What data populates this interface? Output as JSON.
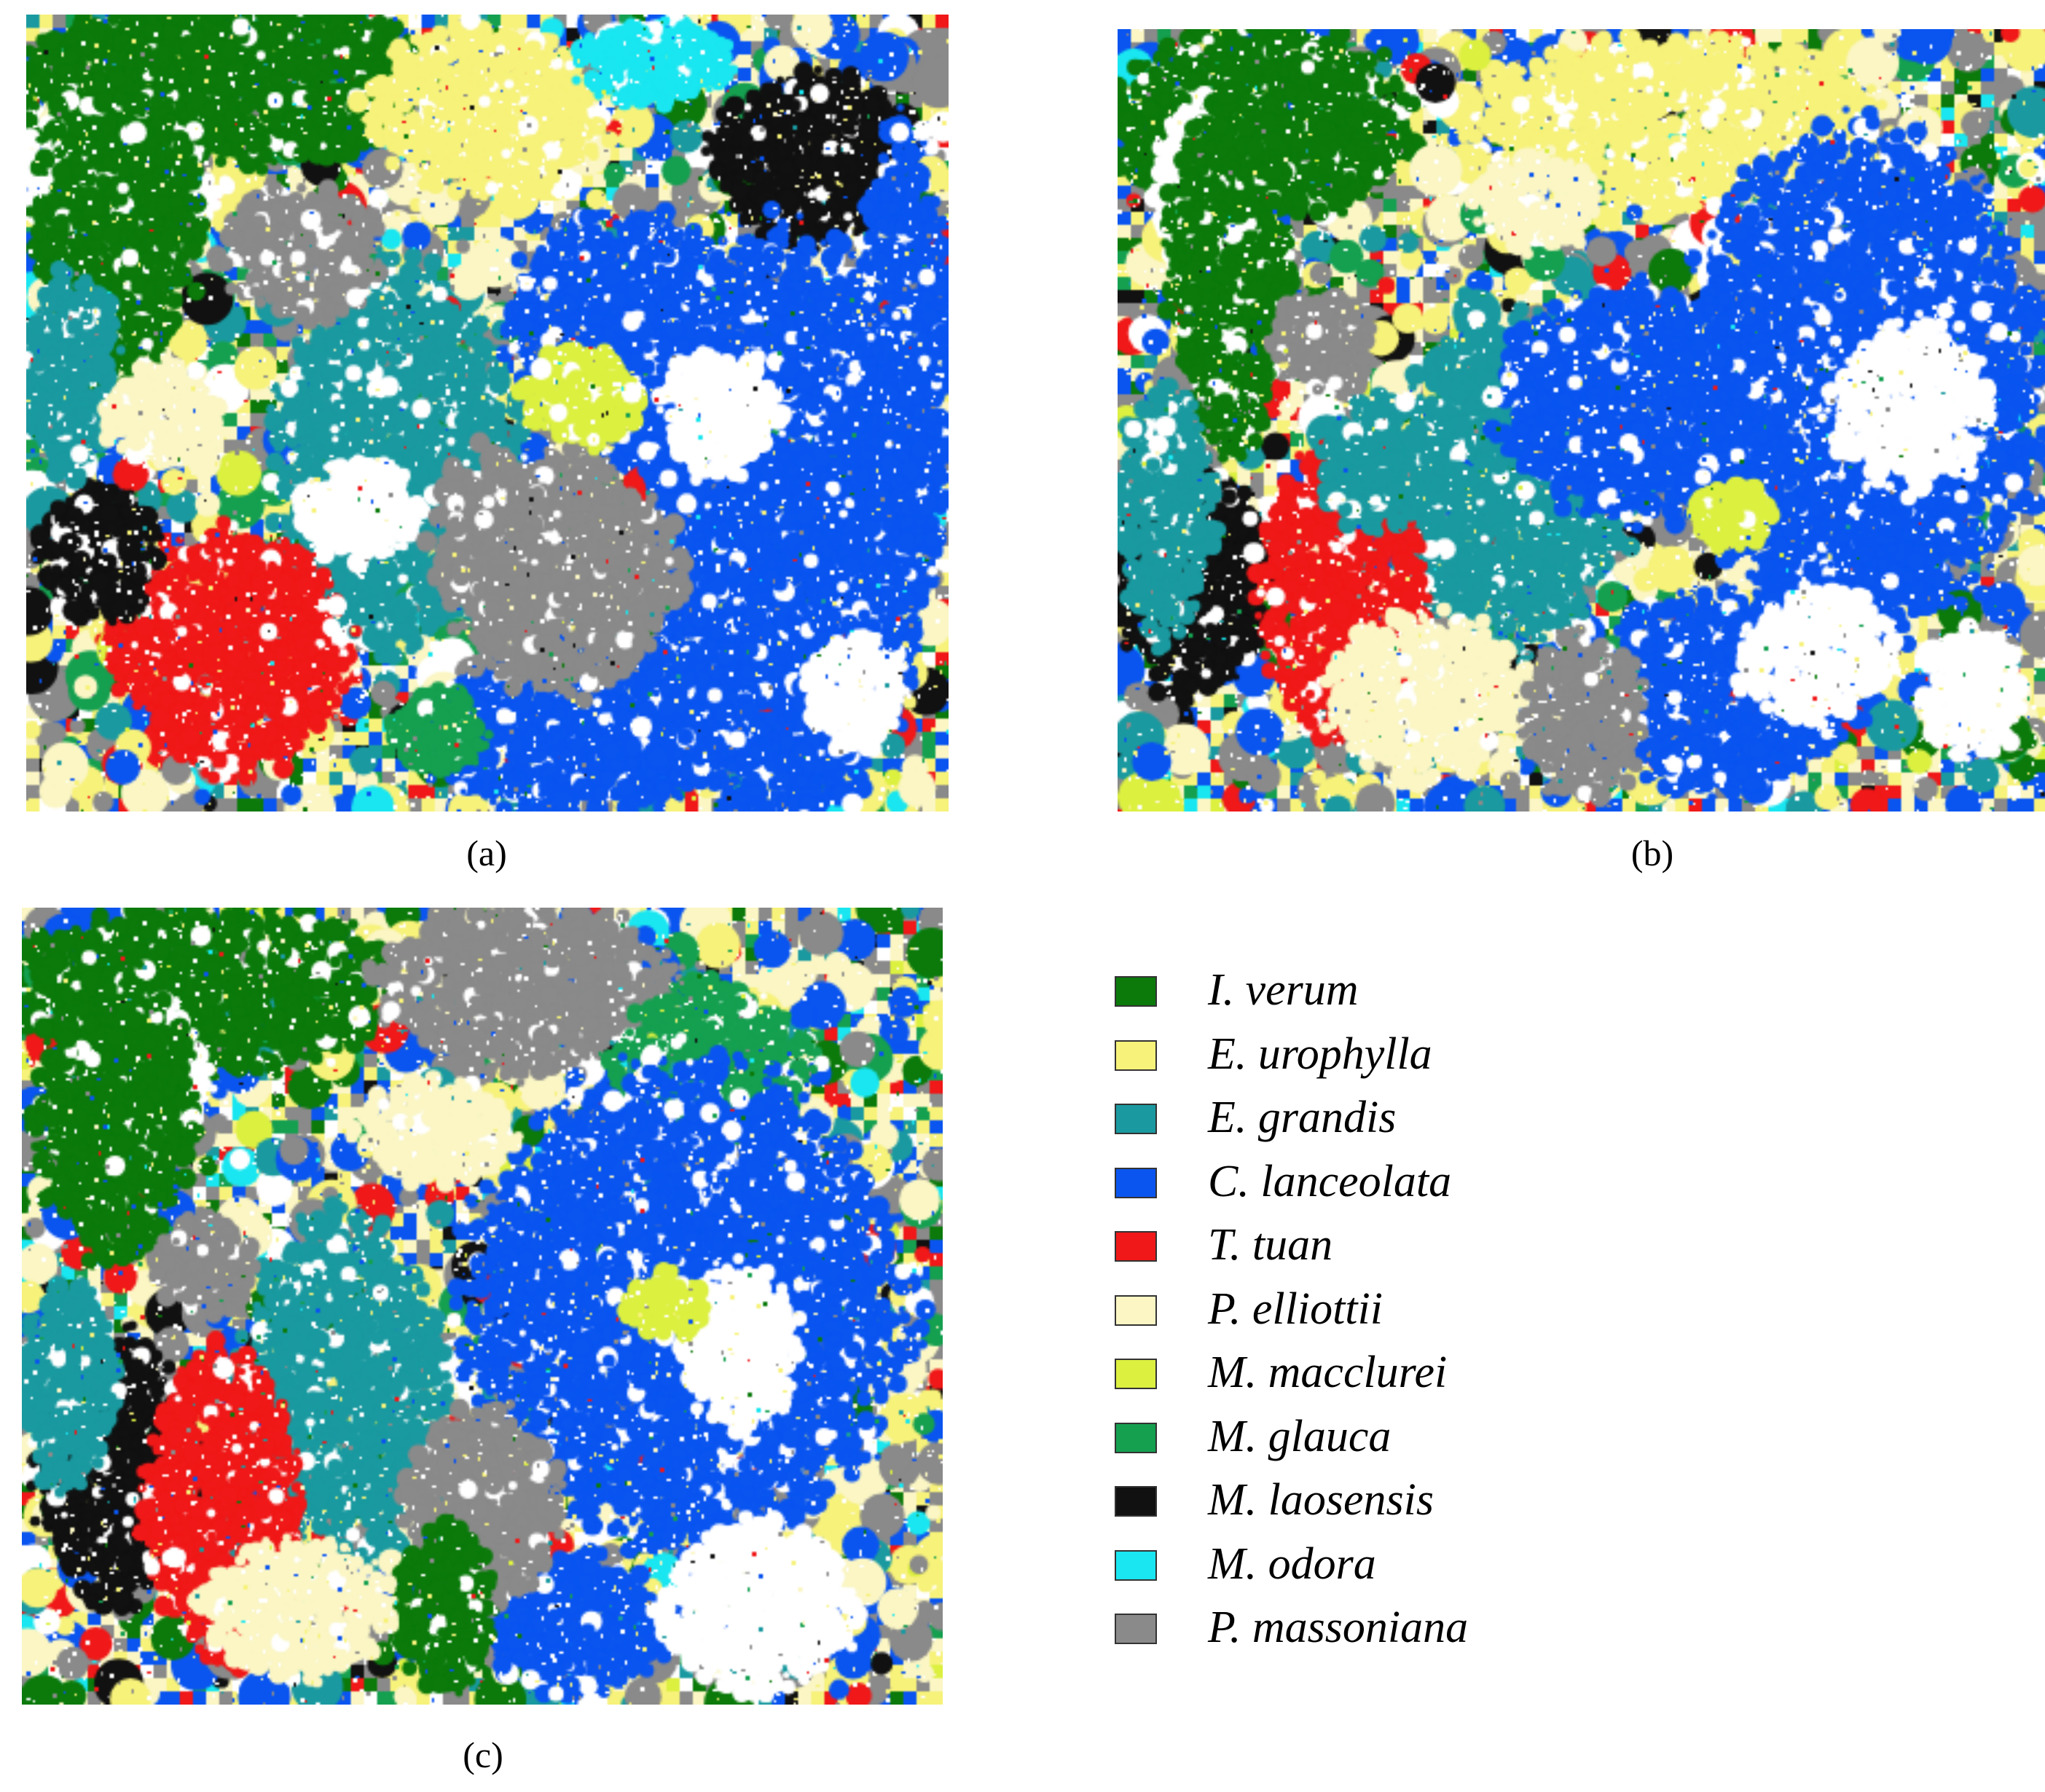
{
  "captions": {
    "a": "(a)",
    "b": "(b)",
    "c": "(c)"
  },
  "legend": [
    {
      "label": "I. verum",
      "color": "#0b7a0b"
    },
    {
      "label": "E. urophylla",
      "color": "#f7f27a"
    },
    {
      "label": "E. grandis",
      "color": "#1a9aa0"
    },
    {
      "label": "C. lanceolata",
      "color": "#0a55f0"
    },
    {
      "label": "T. tuan",
      "color": "#f01818"
    },
    {
      "label": "P. elliottii",
      "color": "#fbf6c4"
    },
    {
      "label": "M. macclurei",
      "color": "#dcf040"
    },
    {
      "label": "M. glauca",
      "color": "#15a050"
    },
    {
      "label": "M. laosensis",
      "color": "#111111"
    },
    {
      "label": "M. odora",
      "color": "#19e6f0"
    },
    {
      "label": "P. massoniana",
      "color": "#8a8a8a"
    }
  ]
}
